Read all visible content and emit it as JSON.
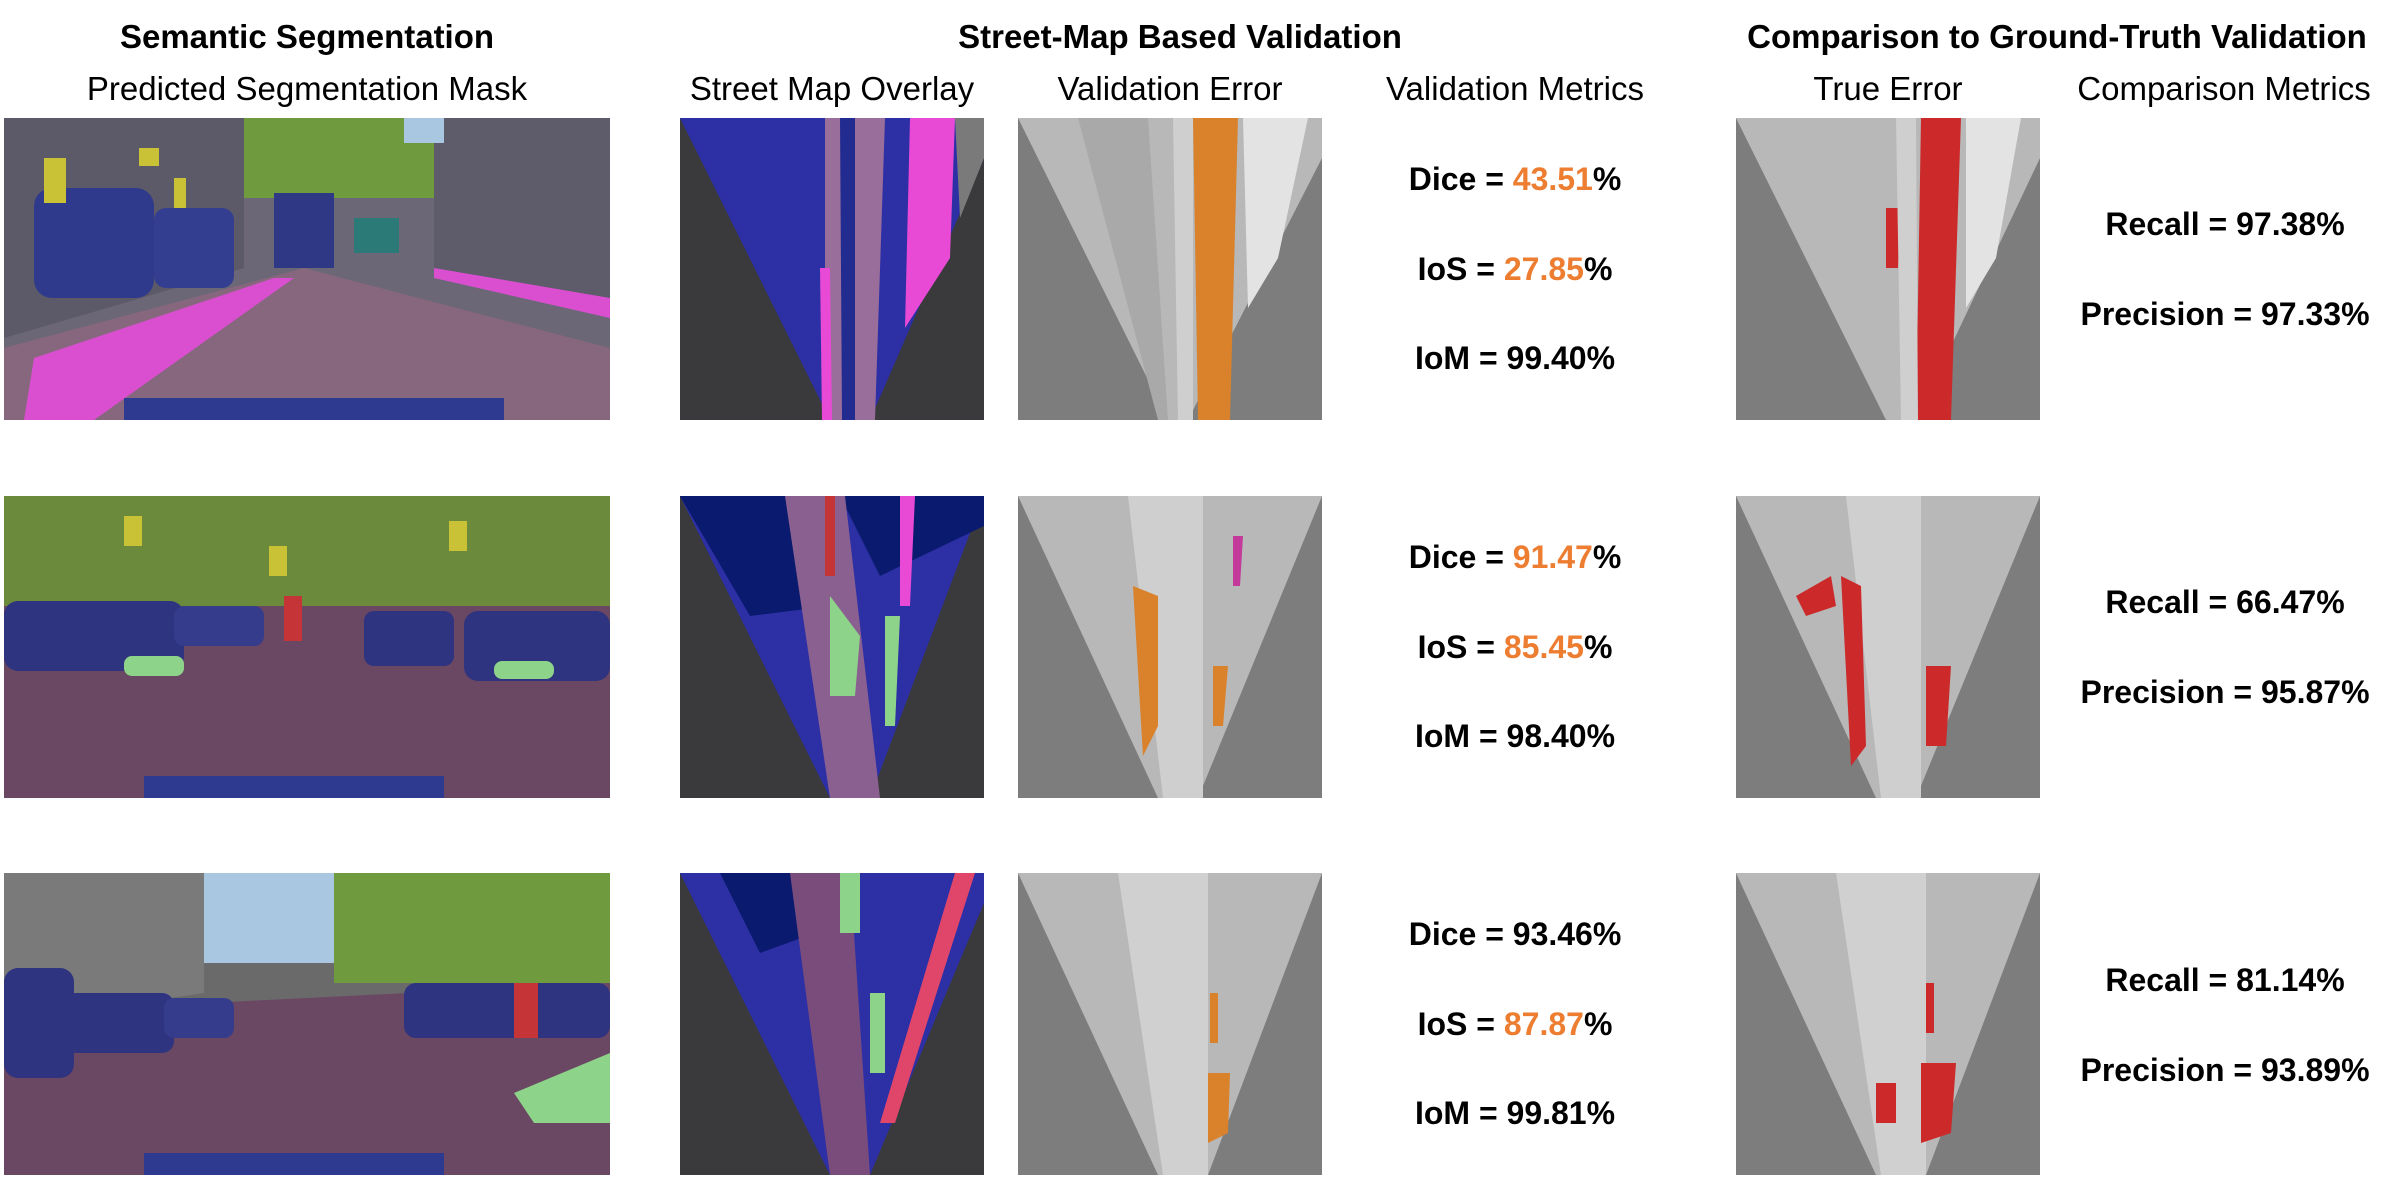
{
  "headers": {
    "semantic": "Semantic Segmentation",
    "streetmap": "Street-Map Based Validation",
    "comparison": "Comparison to Ground-Truth Validation"
  },
  "columns": {
    "predicted": "Predicted Segmentation Mask",
    "overlay": "Street Map Overlay",
    "val_error": "Validation Error",
    "val_metrics": "Validation Metrics",
    "true_error": "True Error",
    "comp_metrics": "Comparison Metrics"
  },
  "colors": {
    "highlight": "#ED7D31",
    "error_validation": "#D9822B",
    "error_true": "#CC2A2A"
  },
  "rows": [
    {
      "dice": {
        "label": "Dice = ",
        "value": "43.51",
        "unit": "%",
        "highlight": true
      },
      "ios": {
        "label": "IoS = ",
        "value": "27.85",
        "unit": "%",
        "highlight": true
      },
      "iom": {
        "label": "IoM = ",
        "value": "99.40",
        "unit": "%",
        "highlight": false
      },
      "recall": "Recall = 97.38%",
      "precision": "Precision = 97.33%"
    },
    {
      "dice": {
        "label": "Dice = ",
        "value": "91.47",
        "unit": "%",
        "highlight": true
      },
      "ios": {
        "label": "IoS = ",
        "value": "85.45",
        "unit": "%",
        "highlight": true
      },
      "iom": {
        "label": "IoM = ",
        "value": "98.40",
        "unit": "%",
        "highlight": false
      },
      "recall": "Recall = 66.47%",
      "precision": "Precision = 95.87%"
    },
    {
      "dice": {
        "label": "Dice = ",
        "value": "93.46",
        "unit": "%",
        "highlight": false
      },
      "ios": {
        "label": "IoS = ",
        "value": "87.87",
        "unit": "%",
        "highlight": true
      },
      "iom": {
        "label": "IoM = ",
        "value": "99.81",
        "unit": "%",
        "highlight": false
      },
      "recall": "Recall = 81.14%",
      "precision": "Precision = 93.89%"
    }
  ]
}
